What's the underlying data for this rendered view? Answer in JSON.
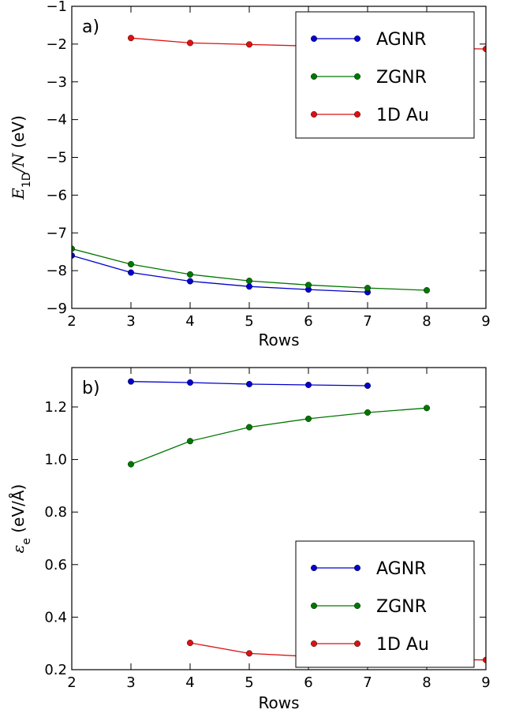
{
  "chart_data": [
    {
      "type": "line",
      "panel_label": "a)",
      "xlabel": "Rows",
      "ylabel": {
        "symbol": "E",
        "subscript": "1D",
        "divider": "/",
        "denominator": "N",
        "unit": " (eV)"
      },
      "xlim": [
        2,
        9
      ],
      "ylim": [
        -9,
        -1
      ],
      "xticks": [
        "2",
        "3",
        "4",
        "5",
        "6",
        "7",
        "8",
        "9"
      ],
      "xtick_values": [
        2,
        3,
        4,
        5,
        6,
        7,
        8,
        9
      ],
      "yticks": [
        "−1",
        "−2",
        "−3",
        "−4",
        "−5",
        "−6",
        "−7",
        "−8",
        "−9"
      ],
      "ytick_values": [
        -1,
        -2,
        -3,
        -4,
        -5,
        -6,
        -7,
        -8,
        -9
      ],
      "legend_position": "top-right",
      "series": [
        {
          "name": "AGNR",
          "color": "#0000cc",
          "x": [
            2,
            3,
            4,
            5,
            6,
            7
          ],
          "y": [
            -7.6,
            -8.05,
            -8.28,
            -8.42,
            -8.5,
            -8.57
          ]
        },
        {
          "name": "ZGNR",
          "color": "#007700",
          "x": [
            2,
            3,
            4,
            5,
            6,
            7,
            8
          ],
          "y": [
            -7.42,
            -7.83,
            -8.1,
            -8.27,
            -8.38,
            -8.46,
            -8.52
          ]
        },
        {
          "name": "1D Au",
          "color": "#dd1111",
          "x": [
            3,
            4,
            5,
            6,
            7,
            8,
            9
          ],
          "y": [
            -1.84,
            -1.97,
            -2.01,
            -2.05,
            -2.08,
            -2.1,
            -2.13
          ]
        }
      ]
    },
    {
      "type": "line",
      "panel_label": "b)",
      "xlabel": "Rows",
      "ylabel": {
        "symbol": "ε",
        "subscript": "e",
        "unit": " (eV/Å)"
      },
      "xlim": [
        2,
        9
      ],
      "ylim": [
        0.2,
        1.35
      ],
      "xticks": [
        "2",
        "3",
        "4",
        "5",
        "6",
        "7",
        "8",
        "9"
      ],
      "xtick_values": [
        2,
        3,
        4,
        5,
        6,
        7,
        8,
        9
      ],
      "yticks": [
        "0.2",
        "0.4",
        "0.6",
        "0.8",
        "1.0",
        "1.2"
      ],
      "ytick_values": [
        0.2,
        0.4,
        0.6,
        0.8,
        1.0,
        1.2
      ],
      "legend_position": "lower-right",
      "series": [
        {
          "name": "AGNR",
          "color": "#0000cc",
          "x": [
            3,
            4,
            5,
            6,
            7
          ],
          "y": [
            1.297,
            1.293,
            1.287,
            1.284,
            1.281
          ]
        },
        {
          "name": "ZGNR",
          "color": "#007700",
          "x": [
            3,
            4,
            5,
            6,
            7,
            8
          ],
          "y": [
            0.982,
            1.07,
            1.123,
            1.155,
            1.179,
            1.196
          ]
        },
        {
          "name": "1D Au",
          "color": "#dd1111",
          "x": [
            4,
            5,
            6,
            7,
            8,
            9
          ],
          "y": [
            0.302,
            0.262,
            0.25,
            0.244,
            0.24,
            0.237
          ]
        }
      ]
    }
  ]
}
